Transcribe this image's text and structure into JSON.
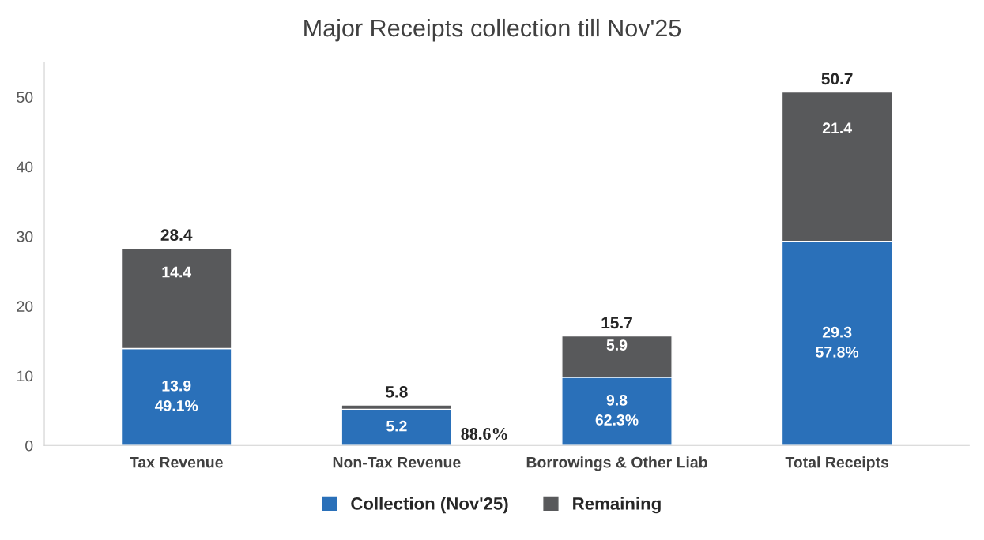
{
  "chart_data": {
    "type": "bar",
    "title": "Major Receipts collection till Nov'25",
    "stacked": true,
    "categories": [
      "Tax Revenue",
      "Non-Tax Revenue",
      "Borrowings & Other Liab",
      "Total Receipts"
    ],
    "series": [
      {
        "name": "Collection (Nov'25)",
        "color": "#2a70b9",
        "values": [
          13.9,
          5.2,
          9.8,
          29.3
        ],
        "value_labels": [
          "13.9\n49.1%",
          "5.2",
          "9.8\n62.3%",
          "29.3\n57.8%"
        ]
      },
      {
        "name": "Remaining",
        "color": "#58595b",
        "values": [
          14.4,
          0.6,
          5.9,
          21.4
        ],
        "value_labels": [
          "14.4",
          null,
          "5.9",
          "21.4"
        ]
      }
    ],
    "totals": [
      "28.4",
      "5.8",
      "15.7",
      "50.7"
    ],
    "annotations": [
      "88.6%"
    ],
    "ylim": [
      0,
      55
    ],
    "yticks": [
      0,
      10,
      20,
      30,
      40,
      50
    ],
    "grid": false,
    "legend": "bottom"
  }
}
